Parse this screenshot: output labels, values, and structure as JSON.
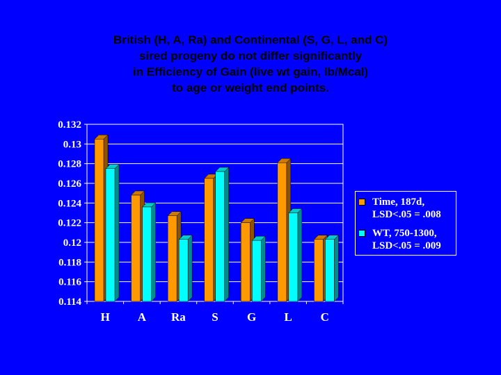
{
  "title_lines": [
    "British (H, A, Ra) and Continental (S, G, L, and C)",
    "sired progeny do not differ significantly",
    "in Efficiency of Gain (live wt gain, lb/Mcal)",
    "to age or weight end points."
  ],
  "colors": {
    "background": "#0000FF",
    "series_time": "#FF9900",
    "series_wt": "#00FFFF",
    "plot_area": "#0000FF",
    "gridline": "#FFFFFF"
  },
  "chart_data": {
    "type": "bar",
    "title": "British (H, A, Ra) and Continental (S, G, L, and C) sired progeny do not differ significantly in Efficiency of Gain (live wt gain, lb/Mcal) to age or weight end points.",
    "categories": [
      "H",
      "A",
      "Ra",
      "S",
      "G",
      "L",
      "C"
    ],
    "series": [
      {
        "name": "Time, 187d, LSD<.05 = .008",
        "values": [
          0.1305,
          0.1248,
          0.1227,
          0.1265,
          0.122,
          0.1281,
          0.1203
        ]
      },
      {
        "name": "WT, 750-1300, LSD<.05 = .009",
        "values": [
          0.1275,
          0.1236,
          0.1203,
          0.1272,
          0.1202,
          0.123,
          0.1203
        ]
      }
    ],
    "y_ticks": [
      "0.132",
      "0.13",
      "0.128",
      "0.126",
      "0.124",
      "0.122",
      "0.12",
      "0.118",
      "0.116",
      "0.114"
    ],
    "ylim": [
      0.114,
      0.132
    ],
    "xlabel": "",
    "ylabel": "",
    "grid": true,
    "legend_position": "right",
    "legend_lines": [
      "Time, 187d,\nLSD<.05 = .008",
      "WT, 750-1300,\nLSD<.05 = .009"
    ]
  }
}
